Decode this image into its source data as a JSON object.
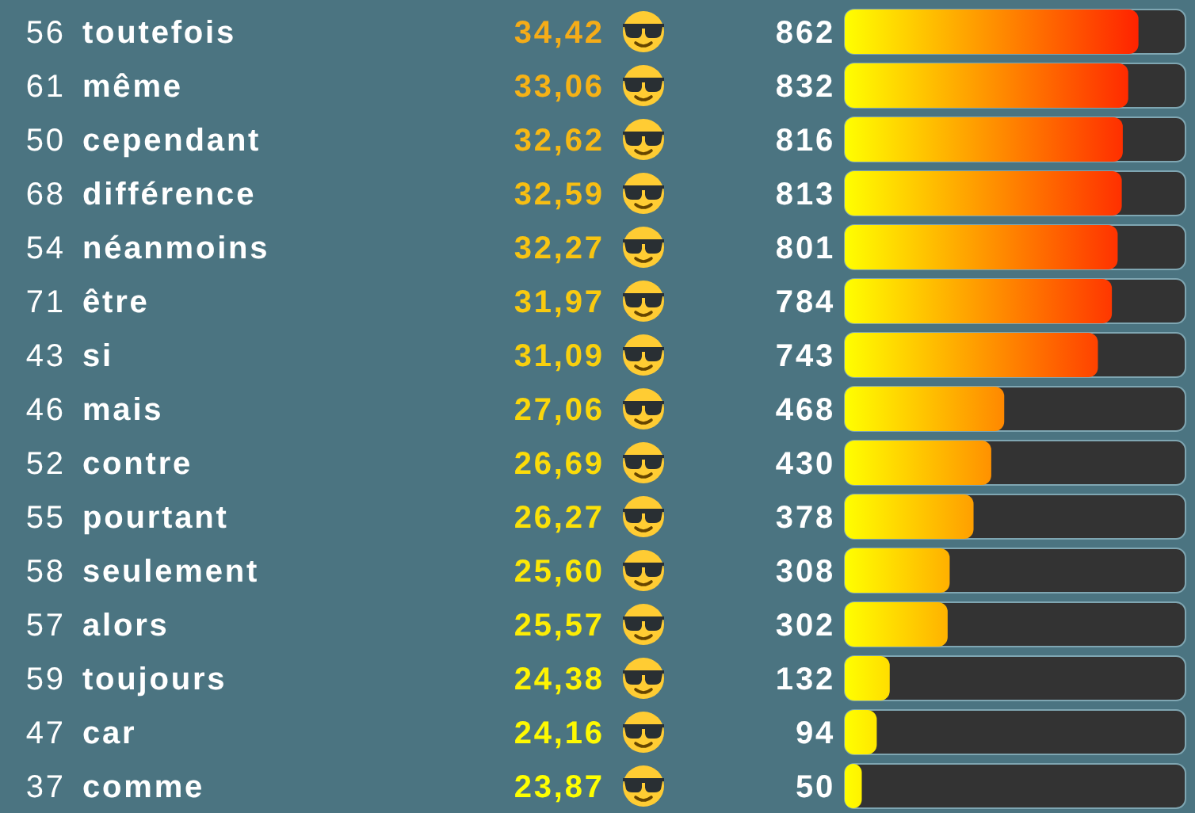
{
  "chart_data": {
    "type": "bar",
    "orientation": "horizontal",
    "categories": [
      "toutefois",
      "même",
      "cependant",
      "différence",
      "néanmoins",
      "être",
      "si",
      "mais",
      "contre",
      "pourtant",
      "seulement",
      "alors",
      "toujours",
      "car",
      "comme"
    ],
    "y2_categories": [
      "56",
      "61",
      "50",
      "68",
      "54",
      "71",
      "43",
      "46",
      "52",
      "55",
      "58",
      "57",
      "59",
      "47",
      "37"
    ],
    "values": [
      862,
      832,
      816,
      813,
      801,
      784,
      743,
      468,
      430,
      378,
      308,
      302,
      132,
      94,
      50
    ],
    "colors": [
      "#ff2300",
      "#ff2b00",
      "#ff2f00",
      "#ff3000",
      "#ff3300",
      "#ff3700",
      "#ff4200",
      "#ff8800",
      "#ff9100",
      "#ff9f00",
      "#ffb000",
      "#ffb200",
      "#ffdd00",
      "#ffe700",
      "#fff200"
    ],
    "xlim": [
      0,
      1000
    ],
    "data_labels": true,
    "tick_labels": "y",
    "annotations": [
      "34,42",
      "33,06",
      "32,62",
      "32,59",
      "32,27",
      "31,97",
      "31,09",
      "27,06",
      "26,69",
      "26,27",
      "25,60",
      "25,57",
      "24,38",
      "24,16",
      "23,87"
    ]
  }
}
